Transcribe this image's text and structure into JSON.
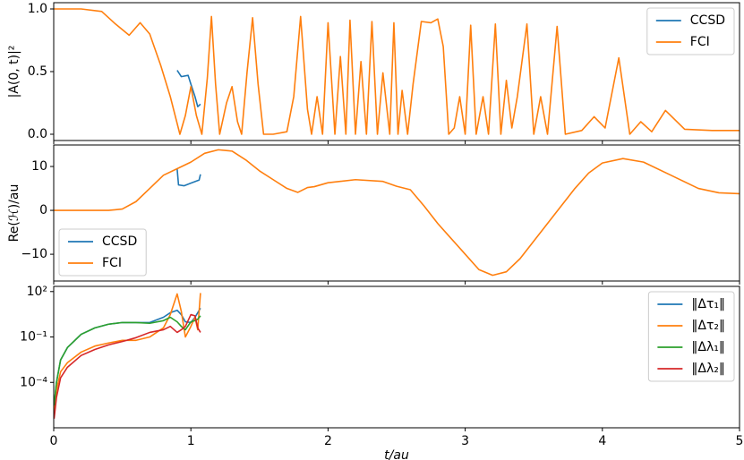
{
  "chart_data": [
    {
      "type": "line",
      "ylabel": "|A(0, t)|²",
      "xlim": [
        0,
        5
      ],
      "xticks": [
        0,
        1,
        2,
        3,
        4,
        5
      ],
      "ylim": [
        -0.05,
        1.05
      ],
      "yticks": [
        {
          "value": 0.0,
          "label": "0.0"
        },
        0.5,
        {
          "value": 1.0,
          "label": "1.0"
        }
      ],
      "legend": "upper right",
      "series": [
        {
          "name": "CCSD",
          "color": "#1f77b4",
          "x": [
            0.9,
            0.93,
            0.98,
            1.0,
            1.03,
            1.05,
            1.07
          ],
          "values": [
            0.51,
            0.46,
            0.47,
            0.4,
            0.3,
            0.22,
            0.24
          ]
        },
        {
          "name": "FCI",
          "color": "#ff7f0e",
          "x": [
            0,
            0.2,
            0.35,
            0.45,
            0.55,
            0.63,
            0.7,
            0.78,
            0.85,
            0.92,
            0.96,
            1.0,
            1.04,
            1.08,
            1.12,
            1.15,
            1.18,
            1.21,
            1.26,
            1.3,
            1.34,
            1.37,
            1.41,
            1.45,
            1.49,
            1.53,
            1.6,
            1.7,
            1.75,
            1.8,
            1.85,
            1.88,
            1.92,
            1.96,
            2.0,
            2.05,
            2.09,
            2.13,
            2.16,
            2.2,
            2.24,
            2.28,
            2.32,
            2.36,
            2.4,
            2.45,
            2.48,
            2.51,
            2.54,
            2.58,
            2.62,
            2.68,
            2.75,
            2.8,
            2.84,
            2.88,
            2.92,
            2.96,
            3.0,
            3.04,
            3.08,
            3.13,
            3.17,
            3.22,
            3.26,
            3.3,
            3.34,
            3.38,
            3.45,
            3.5,
            3.55,
            3.6,
            3.67,
            3.73,
            3.85,
            3.94,
            4.02,
            4.12,
            4.2,
            4.28,
            4.36,
            4.46,
            4.6,
            4.8,
            5
          ],
          "values": [
            1.0,
            1.0,
            0.98,
            0.88,
            0.79,
            0.89,
            0.8,
            0.55,
            0.3,
            0.0,
            0.15,
            0.38,
            0.15,
            0.0,
            0.45,
            0.94,
            0.4,
            0.0,
            0.25,
            0.38,
            0.1,
            0.0,
            0.5,
            0.93,
            0.4,
            0.0,
            0.0,
            0.02,
            0.3,
            0.94,
            0.2,
            0.0,
            0.3,
            0.0,
            0.89,
            0.0,
            0.62,
            0.0,
            0.91,
            0.0,
            0.58,
            0.0,
            0.9,
            0.0,
            0.49,
            0.0,
            0.89,
            0.0,
            0.35,
            0.0,
            0.4,
            0.9,
            0.89,
            0.92,
            0.7,
            0.0,
            0.05,
            0.3,
            0.0,
            0.87,
            0.0,
            0.3,
            0.0,
            0.88,
            0.0,
            0.43,
            0.05,
            0.3,
            0.88,
            0.0,
            0.3,
            0.0,
            0.86,
            0.0,
            0.03,
            0.14,
            0.05,
            0.61,
            0.0,
            0.1,
            0.02,
            0.19,
            0.04,
            0.03,
            0.03
          ]
        }
      ]
    },
    {
      "type": "line",
      "ylabel": "Re(ℋ)/au",
      "xlim": [
        0,
        5
      ],
      "xticks": [
        0,
        1,
        2,
        3,
        4,
        5
      ],
      "ylim": [
        -16.1,
        14.9
      ],
      "yticks": [
        {
          "value": -10,
          "label": "−10"
        },
        0,
        10
      ],
      "legend": "lower left",
      "series": [
        {
          "name": "CCSD",
          "color": "#1f77b4",
          "x": [
            0.9,
            0.91,
            0.95,
            1.0,
            1.05,
            1.06,
            1.07
          ],
          "values": [
            9.4,
            5.8,
            5.6,
            6.2,
            6.8,
            6.9,
            8.2
          ]
        },
        {
          "name": "FCI",
          "color": "#ff7f0e",
          "x": [
            0,
            0.4,
            0.5,
            0.6,
            0.7,
            0.8,
            0.9,
            1.0,
            1.1,
            1.2,
            1.3,
            1.4,
            1.5,
            1.6,
            1.7,
            1.78,
            1.85,
            1.9,
            2.0,
            2.2,
            2.4,
            2.5,
            2.6,
            2.7,
            2.8,
            2.9,
            3.0,
            3.1,
            3.2,
            3.3,
            3.4,
            3.5,
            3.6,
            3.7,
            3.8,
            3.9,
            4.0,
            4.15,
            4.3,
            4.5,
            4.7,
            4.85,
            5
          ],
          "values": [
            0,
            0,
            0.3,
            2,
            5,
            8,
            9.5,
            11,
            13,
            13.8,
            13.5,
            11.5,
            9,
            7,
            5,
            4.1,
            5.2,
            5.4,
            6.3,
            7,
            6.6,
            5.5,
            4.7,
            1,
            -3,
            -6.5,
            -10,
            -13.5,
            -14.8,
            -14,
            -11,
            -7,
            -3,
            1,
            5,
            8.5,
            10.8,
            11.8,
            11,
            8,
            5,
            4,
            3.8
          ]
        }
      ]
    },
    {
      "type": "line",
      "xlabel": "t/au",
      "xlim": [
        0,
        5
      ],
      "xticks": [
        0,
        1,
        2,
        3,
        4,
        5
      ],
      "yscale": "log",
      "ylim": [
        1e-07,
        220
      ],
      "yticks": [
        {
          "value": 100,
          "label": "10²"
        },
        {
          "value": 0.1,
          "label": "10⁻¹"
        },
        {
          "value": 0.0001,
          "label": "10⁻⁴"
        }
      ],
      "legend": "upper right",
      "series": [
        {
          "name": "‖Δτ₁‖",
          "color": "#1f77b4",
          "x": [
            0.003,
            0.02,
            0.05,
            0.1,
            0.2,
            0.3,
            0.4,
            0.5,
            0.6,
            0.7,
            0.8,
            0.85,
            0.9,
            0.93,
            0.96,
            1.0,
            1.03,
            1.05,
            1.07
          ],
          "values": [
            3e-06,
            0.0001,
            0.003,
            0.02,
            0.15,
            0.4,
            0.7,
            0.9,
            0.9,
            0.9,
            2,
            4,
            5.8,
            3,
            1,
            0.9,
            2,
            4,
            8
          ]
        },
        {
          "name": "‖Δτ₂‖",
          "color": "#ff7f0e",
          "x": [
            0.003,
            0.02,
            0.05,
            0.1,
            0.2,
            0.3,
            0.4,
            0.5,
            0.6,
            0.7,
            0.8,
            0.85,
            0.9,
            0.93,
            0.96,
            1.0,
            1.03,
            1.05,
            1.07
          ],
          "values": [
            1e-06,
            3e-05,
            0.0005,
            0.002,
            0.01,
            0.025,
            0.04,
            0.06,
            0.06,
            0.1,
            0.4,
            3,
            70,
            5,
            0.1,
            0.5,
            2,
            0.3,
            80
          ]
        },
        {
          "name": "‖Δλ₁‖",
          "color": "#2ca02c",
          "x": [
            0.003,
            0.02,
            0.05,
            0.1,
            0.2,
            0.3,
            0.4,
            0.5,
            0.6,
            0.7,
            0.8,
            0.85,
            0.9,
            0.93,
            0.96,
            1.0,
            1.03,
            1.05,
            1.07
          ],
          "values": [
            3e-06,
            0.0001,
            0.003,
            0.02,
            0.15,
            0.4,
            0.7,
            0.9,
            0.9,
            0.8,
            1.2,
            2,
            1,
            0.5,
            0.3,
            1,
            1.2,
            1.5,
            2.5
          ]
        },
        {
          "name": "‖Δλ₂‖",
          "color": "#d62728",
          "x": [
            0.003,
            0.02,
            0.05,
            0.1,
            0.2,
            0.3,
            0.4,
            0.5,
            0.6,
            0.7,
            0.8,
            0.85,
            0.9,
            0.93,
            0.96,
            1.0,
            1.03,
            1.05,
            1.07
          ],
          "values": [
            4e-07,
            1e-05,
            0.0002,
            0.001,
            0.006,
            0.015,
            0.03,
            0.05,
            0.09,
            0.2,
            0.3,
            0.5,
            0.2,
            0.3,
            0.5,
            3,
            2.5,
            0.4,
            0.2
          ]
        }
      ]
    }
  ]
}
